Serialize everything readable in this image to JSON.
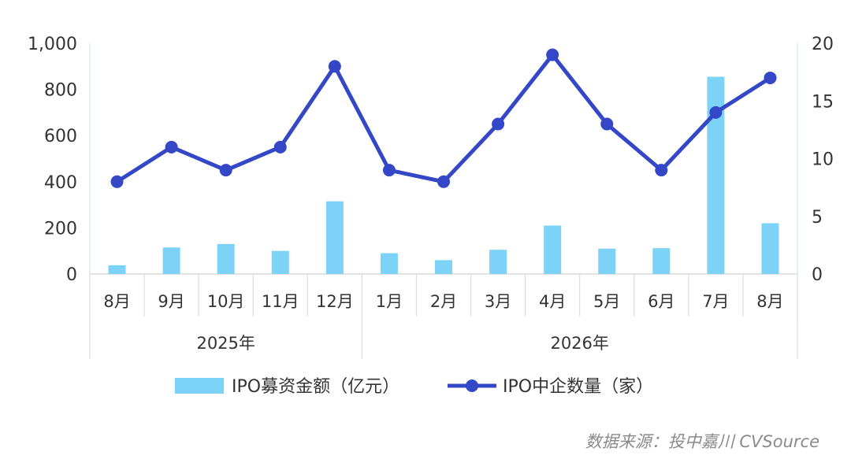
{
  "chart_data": {
    "type": "bar+line",
    "categories": [
      "8月",
      "9月",
      "10月",
      "11月",
      "12月",
      "1月",
      "2月",
      "3月",
      "4月",
      "5月",
      "6月",
      "7月",
      "8月"
    ],
    "groups": [
      {
        "label": "2025年",
        "count": 5
      },
      {
        "label": "2026年",
        "count": 8
      }
    ],
    "series": [
      {
        "name": "IPO募资金额（亿元）",
        "type": "bar",
        "axis": "left",
        "color": "#7dd3f7",
        "values": [
          38,
          115,
          130,
          100,
          315,
          90,
          60,
          105,
          210,
          110,
          112,
          855,
          220
        ]
      },
      {
        "name": "IPO中企数量（家）",
        "type": "line",
        "axis": "right",
        "color": "#3347c7",
        "values": [
          8,
          11,
          9,
          11,
          18,
          9,
          8,
          13,
          19,
          13,
          9,
          14,
          17
        ]
      }
    ],
    "y_left": {
      "min": 0,
      "max": 1000,
      "ticks": [
        0,
        200,
        400,
        600,
        800,
        1000
      ],
      "tick_labels": [
        "0",
        "200",
        "400",
        "600",
        "800",
        "1,000"
      ]
    },
    "y_right": {
      "min": 0,
      "max": 20,
      "ticks": [
        0,
        5,
        10,
        15,
        20
      ],
      "tick_labels": [
        "0",
        "5",
        "10",
        "15",
        "20"
      ]
    },
    "grid": false,
    "legend_position": "bottom"
  },
  "source_text": "数据来源：投中嘉川 CVSource"
}
